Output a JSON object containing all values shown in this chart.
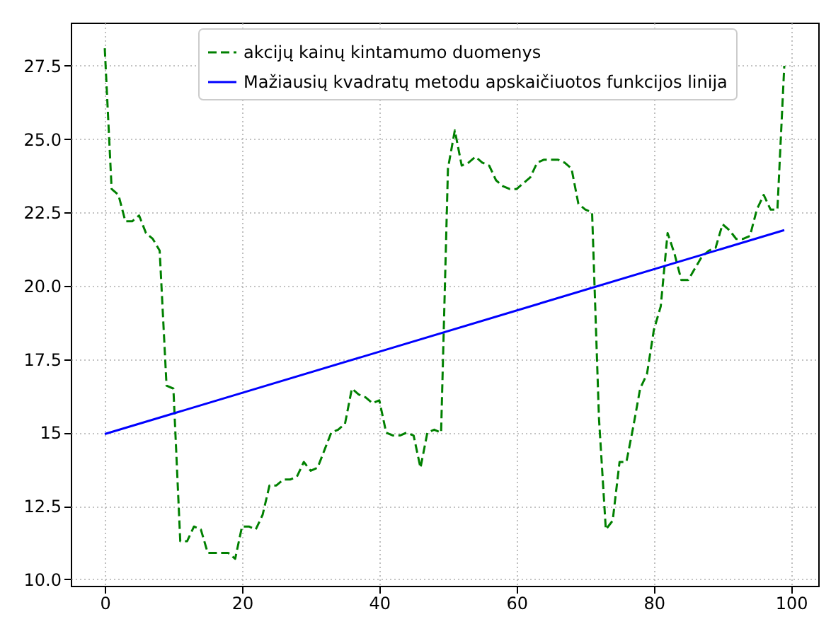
{
  "chart_data": {
    "type": "line",
    "x": [
      0,
      1,
      2,
      3,
      4,
      5,
      6,
      7,
      8,
      9,
      10,
      11,
      12,
      13,
      14,
      15,
      16,
      17,
      18,
      19,
      20,
      21,
      22,
      23,
      24,
      25,
      26,
      27,
      28,
      29,
      30,
      31,
      32,
      33,
      34,
      35,
      36,
      37,
      38,
      39,
      40,
      41,
      42,
      43,
      44,
      45,
      46,
      47,
      48,
      49,
      50,
      51,
      52,
      53,
      54,
      55,
      56,
      57,
      58,
      59,
      60,
      61,
      62,
      63,
      64,
      65,
      66,
      67,
      68,
      69,
      70,
      71,
      72,
      73,
      74,
      75,
      76,
      77,
      78,
      79,
      80,
      81,
      82,
      83,
      84,
      85,
      86,
      87,
      88,
      89,
      90,
      91,
      92,
      93,
      94,
      95,
      96,
      97,
      98,
      99
    ],
    "series": [
      {
        "name": "akcijų kainų kintamumo duomenys",
        "color": "#008000",
        "line_style": "dashed",
        "values": [
          28.1,
          23.3,
          23.1,
          22.2,
          22.2,
          22.4,
          21.8,
          21.6,
          21.2,
          16.6,
          16.5,
          11.3,
          11.3,
          11.8,
          11.7,
          10.9,
          10.9,
          10.9,
          10.9,
          10.7,
          11.8,
          11.8,
          11.7,
          12.2,
          13.2,
          13.2,
          13.4,
          13.4,
          13.5,
          14.0,
          13.7,
          13.8,
          14.4,
          15.0,
          15.1,
          15.3,
          16.5,
          16.3,
          16.2,
          16.0,
          16.1,
          15.0,
          14.9,
          14.9,
          15.0,
          14.9,
          13.8,
          15.0,
          15.1,
          15.0,
          24.0,
          25.3,
          24.1,
          24.2,
          24.4,
          24.2,
          24.1,
          23.6,
          23.4,
          23.3,
          23.3,
          23.5,
          23.7,
          24.2,
          24.3,
          24.3,
          24.3,
          24.2,
          24.0,
          22.8,
          22.6,
          22.5,
          15.5,
          11.7,
          12.0,
          14.0,
          14.0,
          15.2,
          16.5,
          17.0,
          18.5,
          19.3,
          21.8,
          21.1,
          20.2,
          20.2,
          20.6,
          21.0,
          21.2,
          21.3,
          22.1,
          21.9,
          21.6,
          21.6,
          21.7,
          22.6,
          23.1,
          22.6,
          22.6,
          27.5
        ]
      },
      {
        "name": "Mažiausių kvadratų metodu apskaičiuotos funkcijos linija",
        "color": "#0000ff",
        "line_style": "solid",
        "type": "line",
        "x": [
          0,
          99
        ],
        "values": [
          14.95,
          21.9
        ]
      }
    ],
    "xlim": [
      -4.95,
      103.95
    ],
    "ylim": [
      9.78,
      28.97
    ],
    "xticks": [
      0,
      20,
      40,
      60,
      80,
      100
    ],
    "yticks": [
      {
        "value": 10,
        "label": "10.0"
      },
      12.5,
      15,
      17.5,
      {
        "value": 20,
        "label": "20.0"
      },
      22.5,
      {
        "value": 25,
        "label": "25.0"
      },
      27.5
    ],
    "grid": true,
    "legend": "top"
  }
}
